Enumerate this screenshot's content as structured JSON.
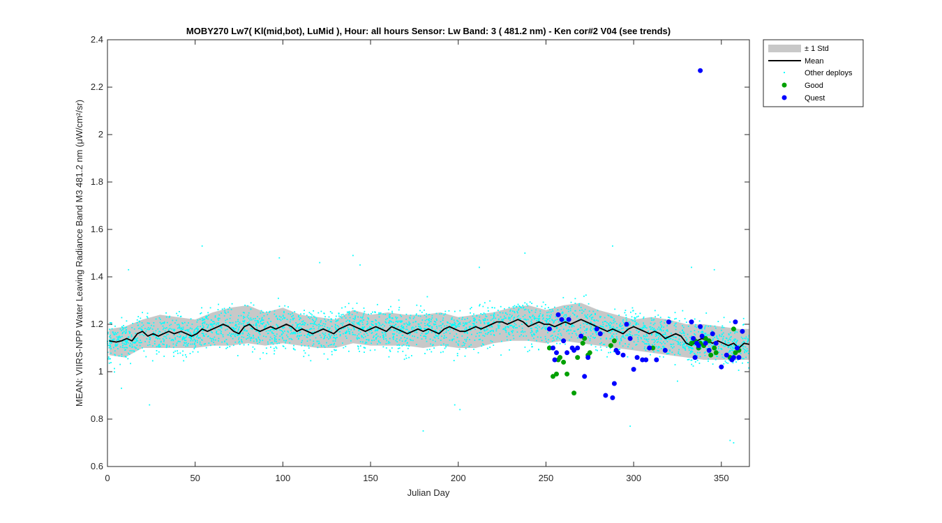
{
  "chart_data": {
    "type": "scatter",
    "title": "MOBY270   Lw7( Kl(mid,bot), LuMid ),   Hour: all hours  Sensor: Lw Band: 3 ( 481.2 nm)  - Ken cor#2 V04 (see trends)",
    "xlabel": "Julian Day",
    "ylabel": "MEAN: VIIRS-NPP Water Leaving Radiance Band M3 481.2 nm (μW/cm²/sr)",
    "xlim": [
      0,
      366
    ],
    "ylim": [
      0.6,
      2.4
    ],
    "xticks": [
      0,
      50,
      100,
      150,
      200,
      250,
      300,
      350
    ],
    "yticks": [
      0.6,
      0.8,
      1,
      1.2,
      1.4,
      1.6,
      1.8,
      2,
      2.2,
      2.4
    ],
    "ytick_labels": [
      "0.6",
      "0.8",
      "1",
      "1.2",
      "1.4",
      "1.6",
      "1.8",
      "2",
      "2.2",
      "2.4"
    ],
    "grid": false,
    "legend_position": "outside top-right",
    "legend": [
      {
        "label": "± 1 Std",
        "kind": "band",
        "color": "#c8c8c8"
      },
      {
        "label": "Mean",
        "kind": "line",
        "color": "#000000"
      },
      {
        "label": "Other deploys",
        "kind": "dot",
        "color": "#00ffff"
      },
      {
        "label": "Good",
        "kind": "marker",
        "color": "#00a000"
      },
      {
        "label": "Quest",
        "kind": "marker",
        "color": "#0000ff"
      }
    ],
    "series": [
      {
        "name": "Mean",
        "color": "#000000",
        "x": [
          1,
          5,
          8,
          11,
          14,
          17,
          20,
          23,
          26,
          29,
          32,
          35,
          38,
          42,
          45,
          48,
          51,
          54,
          57,
          60,
          63,
          66,
          69,
          72,
          75,
          78,
          81,
          84,
          87,
          90,
          93,
          96,
          99,
          102,
          105,
          108,
          111,
          114,
          117,
          120,
          123,
          126,
          129,
          132,
          135,
          138,
          141,
          144,
          147,
          150,
          153,
          156,
          159,
          162,
          165,
          168,
          171,
          174,
          177,
          180,
          183,
          186,
          189,
          192,
          195,
          198,
          201,
          204,
          207,
          210,
          213,
          216,
          219,
          222,
          225,
          228,
          231,
          234,
          237,
          240,
          243,
          246,
          249,
          252,
          255,
          258,
          261,
          264,
          267,
          270,
          273,
          276,
          279,
          282,
          285,
          288,
          291,
          294,
          297,
          300,
          303,
          306,
          309,
          312,
          315,
          318,
          321,
          324,
          327,
          330,
          333,
          336,
          339,
          342,
          345,
          348,
          351,
          354,
          357,
          360,
          363,
          366
        ],
        "y": [
          1.13,
          1.125,
          1.13,
          1.14,
          1.13,
          1.16,
          1.17,
          1.15,
          1.16,
          1.15,
          1.16,
          1.17,
          1.16,
          1.17,
          1.16,
          1.15,
          1.16,
          1.18,
          1.17,
          1.18,
          1.19,
          1.2,
          1.19,
          1.17,
          1.16,
          1.19,
          1.2,
          1.18,
          1.17,
          1.18,
          1.19,
          1.18,
          1.19,
          1.2,
          1.19,
          1.17,
          1.18,
          1.17,
          1.16,
          1.17,
          1.18,
          1.17,
          1.16,
          1.18,
          1.19,
          1.2,
          1.19,
          1.18,
          1.17,
          1.18,
          1.19,
          1.18,
          1.17,
          1.19,
          1.18,
          1.17,
          1.16,
          1.17,
          1.18,
          1.17,
          1.18,
          1.17,
          1.16,
          1.18,
          1.19,
          1.18,
          1.17,
          1.17,
          1.18,
          1.19,
          1.18,
          1.19,
          1.2,
          1.21,
          1.21,
          1.2,
          1.21,
          1.22,
          1.21,
          1.19,
          1.2,
          1.21,
          1.2,
          1.2,
          1.19,
          1.2,
          1.21,
          1.2,
          1.21,
          1.22,
          1.21,
          1.2,
          1.19,
          1.18,
          1.17,
          1.18,
          1.17,
          1.16,
          1.18,
          1.19,
          1.18,
          1.17,
          1.16,
          1.17,
          1.16,
          1.14,
          1.15,
          1.16,
          1.15,
          1.12,
          1.11,
          1.13,
          1.14,
          1.13,
          1.12,
          1.13,
          1.12,
          1.11,
          1.12,
          1.1,
          1.12,
          1.115
        ]
      },
      {
        "name": "± 1 Std",
        "color": "#c8c8c8",
        "x": [
          1,
          10,
          20,
          30,
          40,
          50,
          60,
          70,
          80,
          90,
          100,
          110,
          120,
          130,
          140,
          150,
          160,
          170,
          180,
          190,
          200,
          210,
          220,
          230,
          240,
          250,
          260,
          270,
          280,
          290,
          300,
          310,
          320,
          330,
          340,
          350,
          360,
          366
        ],
        "upper": [
          1.18,
          1.19,
          1.22,
          1.24,
          1.23,
          1.22,
          1.25,
          1.27,
          1.28,
          1.25,
          1.27,
          1.24,
          1.23,
          1.22,
          1.26,
          1.24,
          1.25,
          1.24,
          1.24,
          1.25,
          1.23,
          1.24,
          1.25,
          1.27,
          1.28,
          1.26,
          1.28,
          1.29,
          1.26,
          1.24,
          1.22,
          1.23,
          1.22,
          1.2,
          1.2,
          1.19,
          1.18,
          1.18
        ],
        "lower": [
          1.07,
          1.06,
          1.1,
          1.1,
          1.1,
          1.1,
          1.11,
          1.11,
          1.12,
          1.11,
          1.12,
          1.11,
          1.1,
          1.1,
          1.12,
          1.11,
          1.11,
          1.11,
          1.1,
          1.11,
          1.1,
          1.1,
          1.12,
          1.13,
          1.13,
          1.12,
          1.13,
          1.12,
          1.11,
          1.1,
          1.09,
          1.08,
          1.07,
          1.06,
          1.05,
          1.05,
          1.05,
          1.05
        ]
      },
      {
        "name": "Good",
        "color": "#00a000",
        "x": [
          252,
          254,
          256,
          257,
          258,
          260,
          262,
          266,
          268,
          271,
          272,
          274,
          275,
          287,
          289,
          311,
          333,
          335,
          337,
          338,
          340,
          341,
          343,
          344,
          346,
          347,
          355,
          357,
          358,
          360
        ],
        "y": [
          1.1,
          0.98,
          0.99,
          1.05,
          1.06,
          1.04,
          0.99,
          0.91,
          1.06,
          1.12,
          1.14,
          1.07,
          1.08,
          1.11,
          1.13,
          1.1,
          1.12,
          1.13,
          1.1,
          1.12,
          1.11,
          1.14,
          1.13,
          1.07,
          1.1,
          1.08,
          1.06,
          1.18,
          1.08,
          1.09
        ]
      },
      {
        "name": "Quest",
        "color": "#0000ff",
        "x": [
          252,
          254,
          255,
          256,
          257,
          259,
          260,
          262,
          263,
          265,
          266,
          268,
          270,
          272,
          274,
          279,
          281,
          284,
          288,
          289,
          290,
          291,
          294,
          296,
          298,
          300,
          302,
          305,
          307,
          309,
          313,
          318,
          320,
          333,
          334,
          335,
          336,
          337,
          338,
          339,
          341,
          343,
          345,
          347,
          350,
          353,
          356,
          357,
          358,
          359,
          360,
          362,
          338
        ],
        "y": [
          1.18,
          1.1,
          1.05,
          1.08,
          1.24,
          1.22,
          1.13,
          1.08,
          1.22,
          1.1,
          1.09,
          1.1,
          1.15,
          0.98,
          1.06,
          1.18,
          1.16,
          0.9,
          0.89,
          0.95,
          1.09,
          1.08,
          1.07,
          1.2,
          1.14,
          1.01,
          1.06,
          1.05,
          1.05,
          1.1,
          1.05,
          1.09,
          1.21,
          1.21,
          1.14,
          1.06,
          1.12,
          1.11,
          1.19,
          1.15,
          1.12,
          1.09,
          1.16,
          1.12,
          1.02,
          1.07,
          1.05,
          1.06,
          1.21,
          1.1,
          1.06,
          1.17,
          2.27
        ]
      },
      {
        "name": "Other deploys",
        "color": "#00ffff",
        "n_points": 3200,
        "outliers": [
          {
            "x": 54,
            "y": 1.53
          },
          {
            "x": 12,
            "y": 1.43
          },
          {
            "x": 98,
            "y": 1.48
          },
          {
            "x": 121,
            "y": 1.46
          },
          {
            "x": 140,
            "y": 1.49
          },
          {
            "x": 198,
            "y": 0.86
          },
          {
            "x": 201,
            "y": 0.84
          },
          {
            "x": 180,
            "y": 0.75
          },
          {
            "x": 238,
            "y": 1.5
          },
          {
            "x": 288,
            "y": 1.53
          },
          {
            "x": 298,
            "y": 0.77
          },
          {
            "x": 333,
            "y": 1.44
          },
          {
            "x": 355,
            "y": 0.71
          },
          {
            "x": 357,
            "y": 0.7
          },
          {
            "x": 24,
            "y": 0.86
          },
          {
            "x": 8,
            "y": 0.93
          },
          {
            "x": 212,
            "y": 1.44
          },
          {
            "x": 144,
            "y": 1.45
          },
          {
            "x": 325,
            "y": 0.96
          },
          {
            "x": 346,
            "y": 1.43
          }
        ]
      }
    ]
  }
}
